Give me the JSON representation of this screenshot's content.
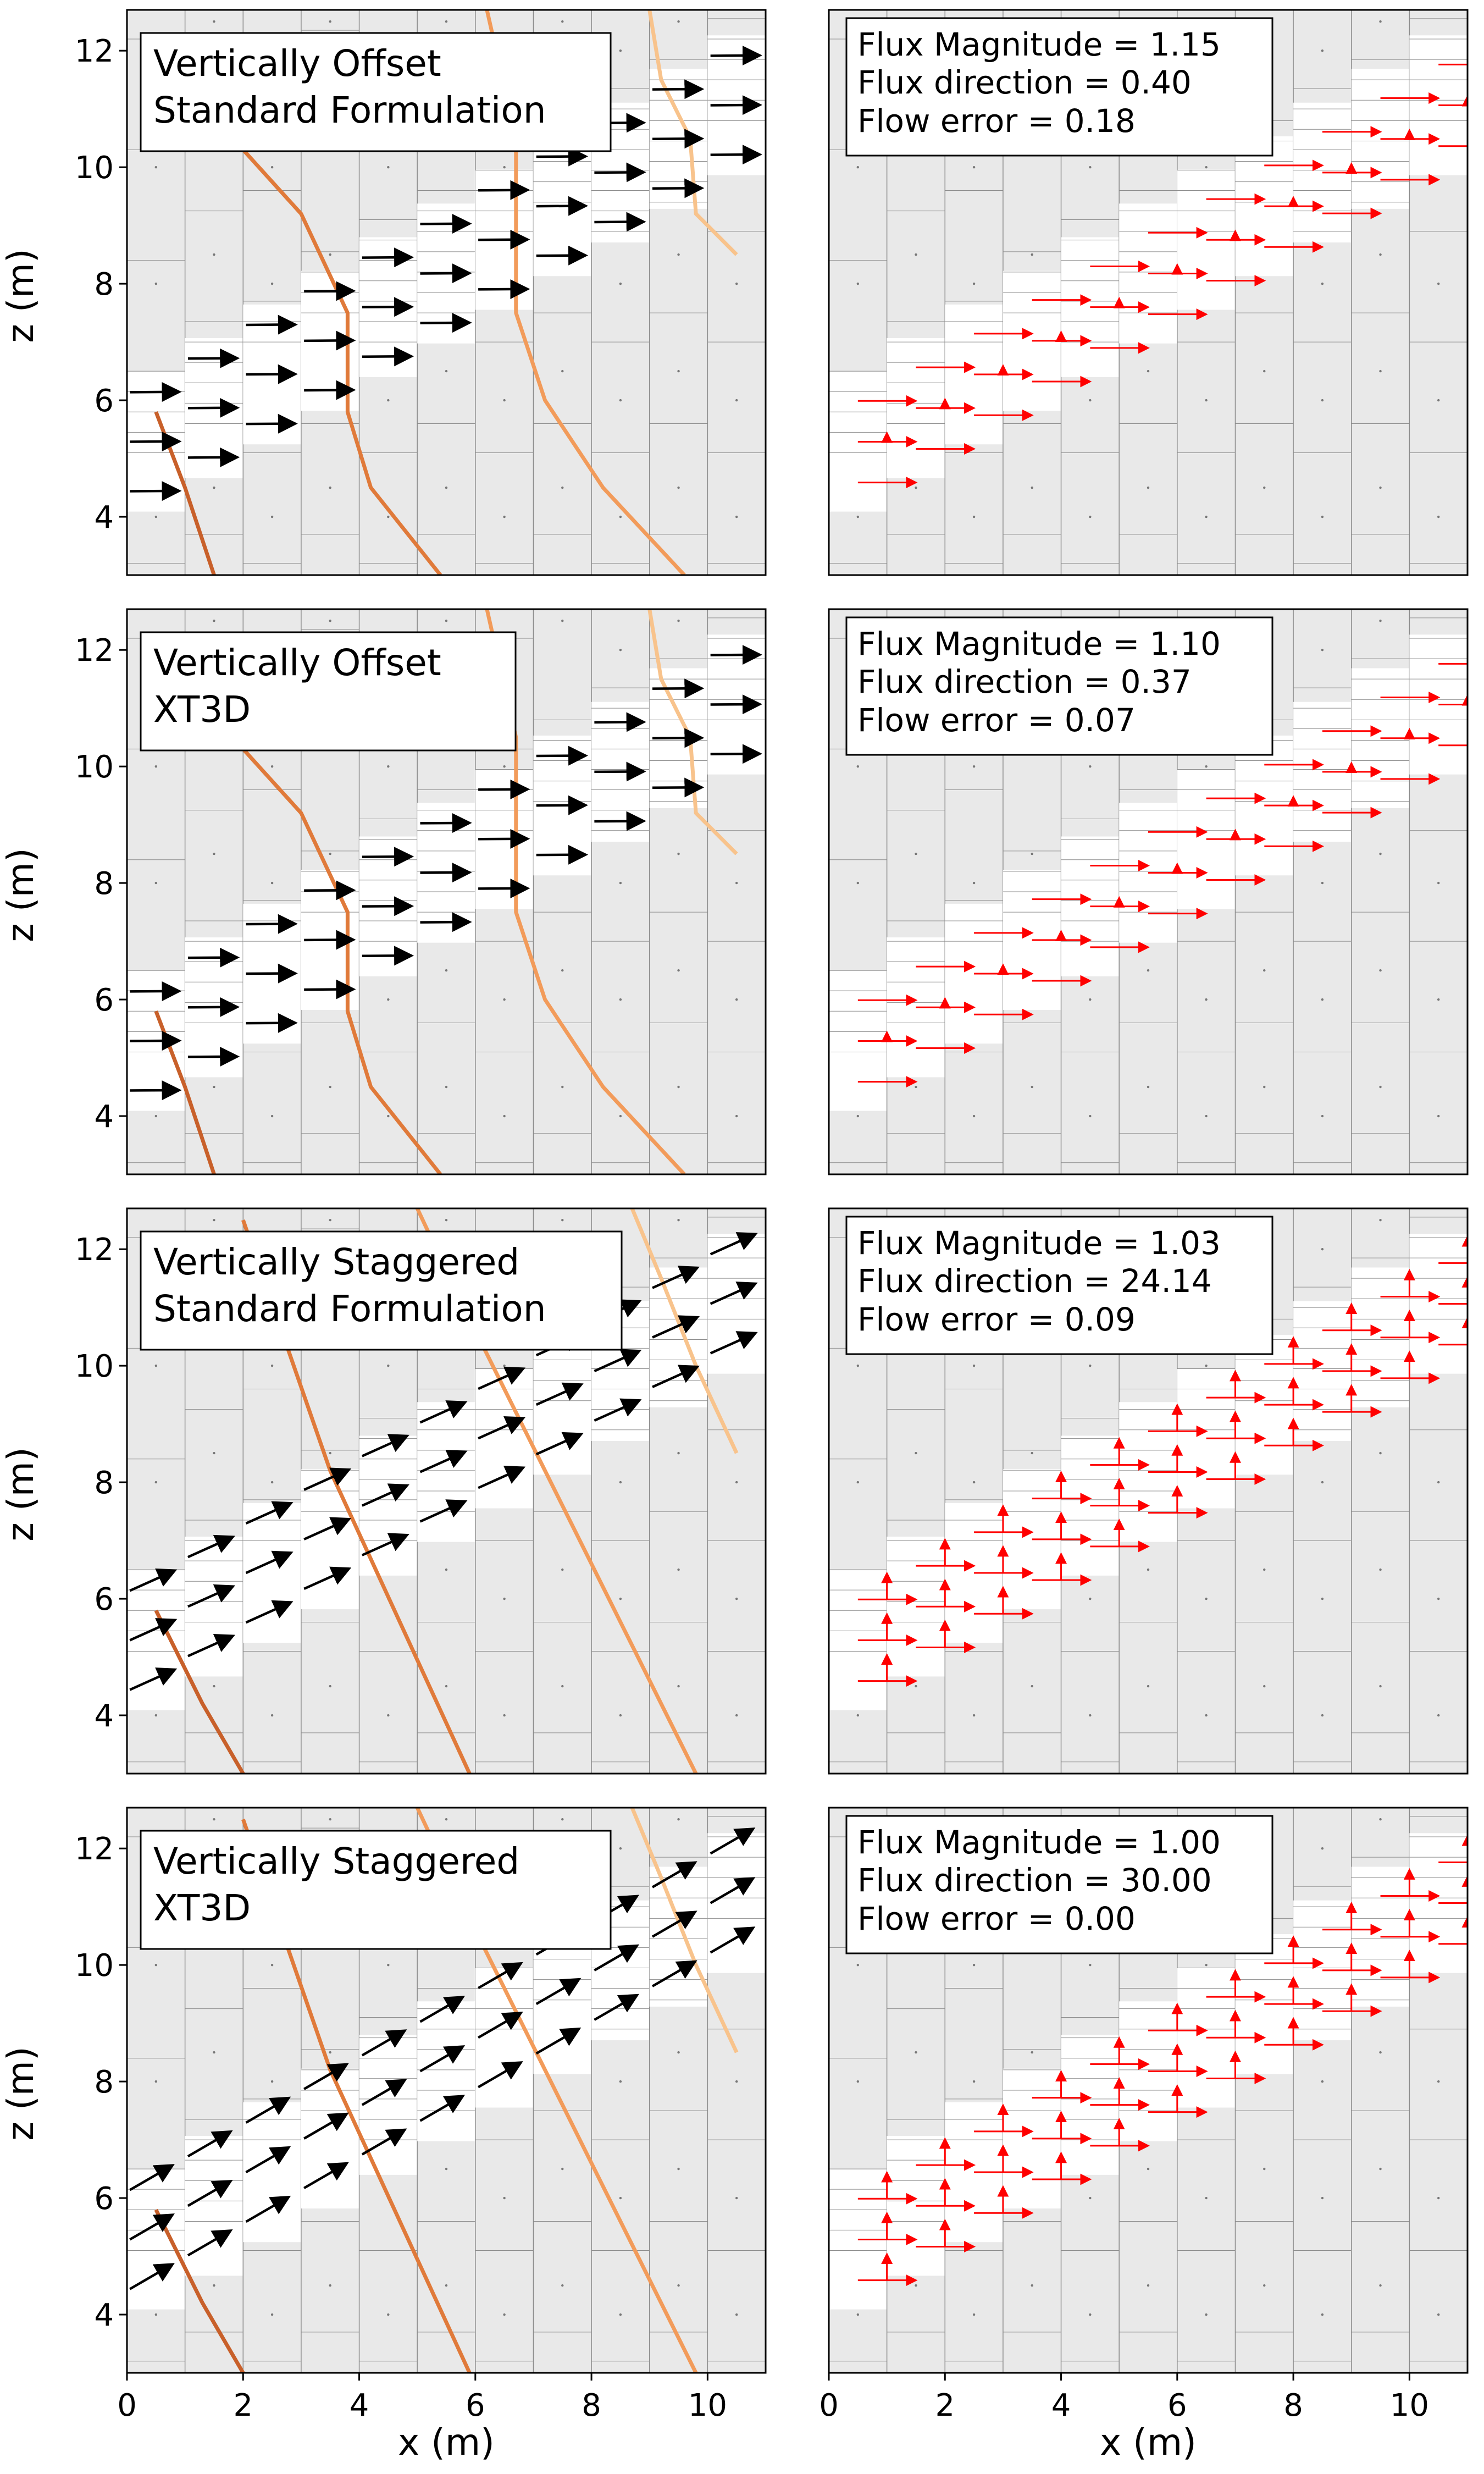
{
  "figure": {
    "x_label": "x (m)",
    "z_label": "z (m)"
  },
  "colors": {
    "cell_fill": "#e9e9e9",
    "active_fill": "#ffffff",
    "grid_line": "#8c8c8c",
    "arrow": "#000000",
    "flux_arrow": "#ff0000",
    "contour_1": "#c8602a",
    "contour_2": "#e07a3a",
    "contour_3": "#f29b5a",
    "contour_4": "#f8c38c"
  },
  "panels": [
    {
      "label_line1": "Vertically Offset",
      "label_line2": "Standard Formulation",
      "stats_line1": "Flux Magnitude = 1.15",
      "stats_line2": "Flux direction = 0.40",
      "stats_line3": "Flow error = 0.18"
    },
    {
      "label_line1": "Vertically Offset",
      "label_line2": "XT3D",
      "stats_line1": "Flux Magnitude = 1.10",
      "stats_line2": "Flux direction = 0.37",
      "stats_line3": "Flow error = 0.07"
    },
    {
      "label_line1": "Vertically Staggered",
      "label_line2": "Standard Formulation",
      "stats_line1": "Flux Magnitude = 1.03",
      "stats_line2": "Flux direction = 24.14",
      "stats_line3": "Flow error = 0.09"
    },
    {
      "label_line1": "Vertically Staggered",
      "label_line2": "XT3D",
      "stats_line1": "Flux Magnitude = 1.00",
      "stats_line2": "Flux direction = 30.00",
      "stats_line3": "Flow error = 0.00"
    }
  ],
  "chart_data": {
    "type": "grid-of-flow-panels",
    "xlim": [
      0,
      11
    ],
    "ylim": [
      3,
      12.7
    ],
    "x_ticks": [
      "0",
      "2",
      "4",
      "6",
      "8",
      "10"
    ],
    "y_ticks": [
      "4",
      "6",
      "8",
      "10",
      "12"
    ],
    "head_contours_offset": [
      [
        [
          0.5,
          5.8
        ],
        [
          1.0,
          4.5
        ],
        [
          1.5,
          3.0
        ]
      ],
      [
        [
          2.0,
          10.3
        ],
        [
          3.0,
          9.2
        ],
        [
          3.8,
          7.5
        ],
        [
          3.8,
          5.8
        ],
        [
          4.2,
          4.5
        ],
        [
          5.4,
          3.0
        ]
      ],
      [
        [
          6.2,
          12.7
        ],
        [
          6.7,
          10.5
        ],
        [
          6.7,
          7.5
        ],
        [
          7.2,
          6.0
        ],
        [
          8.2,
          4.5
        ],
        [
          9.6,
          3.0
        ]
      ],
      [
        [
          9.0,
          12.7
        ],
        [
          9.2,
          11.5
        ],
        [
          9.7,
          10.5
        ],
        [
          9.8,
          9.2
        ],
        [
          10.5,
          8.5
        ]
      ]
    ],
    "head_contours_staggered": [
      [
        [
          0.5,
          5.8
        ],
        [
          1.3,
          4.2
        ],
        [
          2.0,
          3.0
        ]
      ],
      [
        [
          2.0,
          12.5
        ],
        [
          3.5,
          8.2
        ],
        [
          5.9,
          3.0
        ]
      ],
      [
        [
          5.0,
          12.7
        ],
        [
          5.8,
          11.0
        ],
        [
          9.8,
          3.0
        ]
      ],
      [
        [
          8.7,
          12.7
        ],
        [
          9.2,
          11.5
        ],
        [
          9.8,
          10.0
        ],
        [
          10.5,
          8.5
        ]
      ]
    ],
    "active_band": {
      "column_width": 1.0,
      "band_half_height": 1.6,
      "slope": 0.5774,
      "intercept": 5.0
    },
    "velocity_arrow_angles_deg": [
      0.4,
      0.37,
      24.14,
      30.0
    ]
  }
}
